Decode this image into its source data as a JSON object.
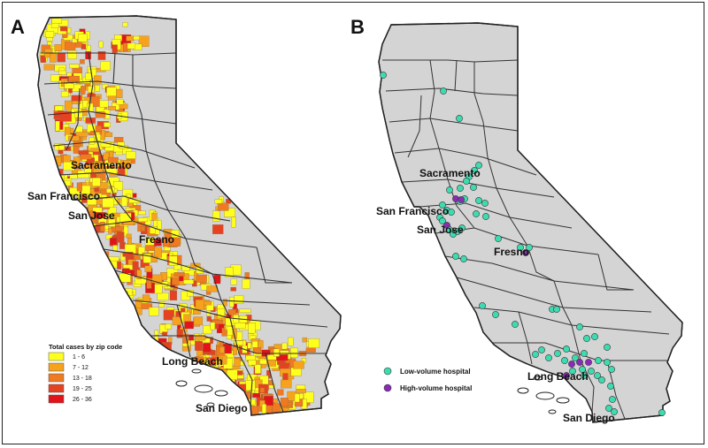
{
  "panel_a": {
    "letter": "A",
    "legend": {
      "title": "Total cases by zip code",
      "items": [
        {
          "label": "1 - 6",
          "color": "#ffff1e"
        },
        {
          "label": "7 - 12",
          "color": "#f7a21c"
        },
        {
          "label": "13 - 18",
          "color": "#ef7a22"
        },
        {
          "label": "19 - 25",
          "color": "#e54222"
        },
        {
          "label": "26 - 36",
          "color": "#e2141a"
        }
      ]
    },
    "cities": [
      {
        "name": "Sacramento"
      },
      {
        "name": "San Francisco"
      },
      {
        "name": "San Jose"
      },
      {
        "name": "Fresno"
      },
      {
        "name": "Long Beach"
      },
      {
        "name": "San Diego"
      }
    ]
  },
  "panel_b": {
    "letter": "B",
    "legend": {
      "items": [
        {
          "label": "Low-volume hospital",
          "color": "#3ddbb0"
        },
        {
          "label": "High-volume hospital",
          "color": "#8a2bb8"
        }
      ]
    },
    "cities": [
      {
        "name": "Sacramento"
      },
      {
        "name": "San Francisco"
      },
      {
        "name": "San Jose"
      },
      {
        "name": "Fresno"
      },
      {
        "name": "Long Beach"
      },
      {
        "name": "San Diego"
      }
    ]
  },
  "colors": {
    "state_fill": "#d4d4d4",
    "county_line": "#444444",
    "state_outline": "#222222"
  }
}
